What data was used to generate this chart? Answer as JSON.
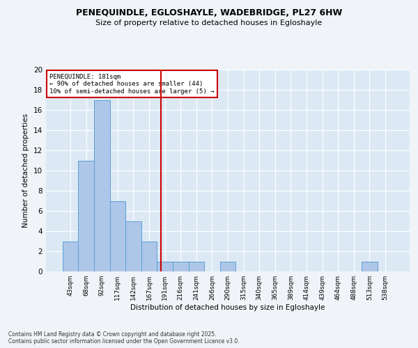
{
  "title_line1": "PENEQUINDLE, EGLOSHAYLE, WADEBRIDGE, PL27 6HW",
  "title_line2": "Size of property relative to detached houses in Egloshayle",
  "xlabel": "Distribution of detached houses by size in Egloshayle",
  "ylabel": "Number of detached properties",
  "bin_labels": [
    "43sqm",
    "68sqm",
    "92sqm",
    "117sqm",
    "142sqm",
    "167sqm",
    "191sqm",
    "216sqm",
    "241sqm",
    "266sqm",
    "290sqm",
    "315sqm",
    "340sqm",
    "365sqm",
    "389sqm",
    "414sqm",
    "439sqm",
    "464sqm",
    "488sqm",
    "513sqm",
    "538sqm"
  ],
  "bar_values": [
    3,
    11,
    17,
    7,
    5,
    3,
    1,
    1,
    1,
    0,
    1,
    0,
    0,
    0,
    0,
    0,
    0,
    0,
    0,
    1,
    0
  ],
  "bar_color": "#aec6e8",
  "bar_edge_color": "#5a9fd4",
  "vline_x": 5.75,
  "vline_color": "#cc0000",
  "annotation_title": "PENEQUINDLE: 181sqm",
  "annotation_line1": "← 90% of detached houses are smaller (44)",
  "annotation_line2": "10% of semi-detached houses are larger (5) →",
  "annotation_box_color": "#cc0000",
  "ylim": [
    0,
    20
  ],
  "yticks": [
    0,
    2,
    4,
    6,
    8,
    10,
    12,
    14,
    16,
    18,
    20
  ],
  "background_color": "#dce9f5",
  "grid_color": "#ffffff",
  "fig_background": "#f0f4f8",
  "footer_line1": "Contains HM Land Registry data © Crown copyright and database right 2025.",
  "footer_line2": "Contains public sector information licensed under the Open Government Licence v3.0."
}
